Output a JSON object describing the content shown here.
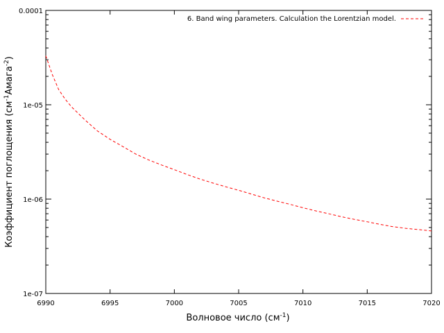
{
  "chart_data": {
    "type": "line",
    "xlabel": "Волновое число (см",
    "xlabel_sup": "-1",
    "xlabel_end": ")",
    "ylabel_part1": "Коэффициент поглощения (см",
    "ylabel_sup1": "-1",
    "ylabel_part2": "Амага",
    "ylabel_sup2": "-2",
    "ylabel_part3": ")",
    "xlim": [
      6990,
      7020
    ],
    "ylim": [
      1e-07,
      0.0001
    ],
    "y_scale": "log",
    "x_ticks": [
      "6990",
      "6995",
      "7000",
      "7005",
      "7010",
      "7015",
      "7020"
    ],
    "y_ticks": [
      "1e-07",
      "1e-06",
      "1e-05",
      "0.0001"
    ],
    "legend_position": "top-right",
    "series": [
      {
        "name": "6. Band wing parameters. Calculation  the Lorentzian model.",
        "color": "#ff0000",
        "style": "dashed",
        "x": [
          6990,
          6990.5,
          6991,
          6991.5,
          6992,
          6993,
          6994,
          6995,
          6996,
          6997,
          6998,
          6999,
          7000,
          7001,
          7002,
          7003,
          7004,
          7005,
          7006,
          7007,
          7008,
          7009,
          7010,
          7011,
          7012,
          7013,
          7014,
          7015,
          7016,
          7017,
          7018,
          7019,
          7020
        ],
        "y": [
          3.3e-05,
          2.1e-05,
          1.45e-05,
          1.15e-05,
          9.5e-06,
          7e-06,
          5.3e-06,
          4.3e-06,
          3.6e-06,
          3e-06,
          2.6e-06,
          2.3e-06,
          2.05e-06,
          1.82e-06,
          1.63e-06,
          1.48e-06,
          1.35e-06,
          1.24e-06,
          1.13e-06,
          1.03e-06,
          9.5e-07,
          8.8e-07,
          8.1e-07,
          7.5e-07,
          7e-07,
          6.5e-07,
          6.1e-07,
          5.75e-07,
          5.4e-07,
          5.1e-07,
          4.9e-07,
          4.75e-07,
          4.6e-07
        ]
      }
    ]
  }
}
